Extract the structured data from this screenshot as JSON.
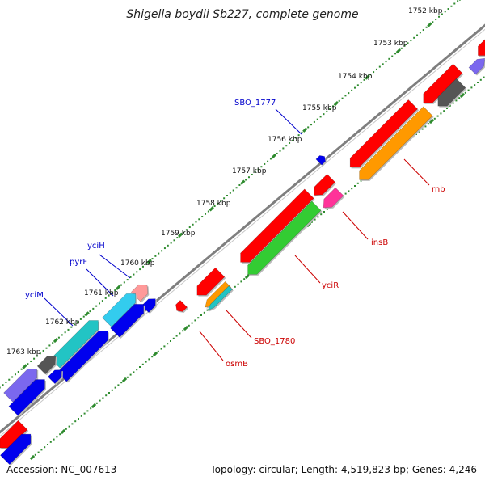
{
  "title": "Shigella boydii Sb227, complete genome",
  "footer": {
    "accession": "Accession: NC_007613",
    "summary": "Topology: circular; Length: 4,519,823 bp; Genes: 4,246"
  },
  "colors": {
    "backbone": "#7f7f7f",
    "tick": "#2e8b2e",
    "label_top": "#0000cc",
    "label_bottom": "#cc0000",
    "red": "#ff0000",
    "blue": "#0000ee",
    "gray": "#555555",
    "orange": "#ff9900",
    "green": "#33cc33",
    "magenta": "#ff3399",
    "cyan": "#22c4c4",
    "sky": "#33ccee",
    "purple": "#7b68ee",
    "pink": "#ff9999"
  },
  "scale_labels": [
    "1752 kbp",
    "1753 kbp",
    "1754 kbp",
    "1755 kbp",
    "1756 kbp",
    "1757 kbp",
    "1758 kbp",
    "1759 kbp",
    "1760 kbp",
    "1761 kbp",
    "1762 kbp",
    "1763 kbp"
  ],
  "gene_labels_top": [
    "SBO_1777",
    "yciH",
    "pyrF",
    "yciM"
  ],
  "gene_labels_bottom": [
    "rnb",
    "insB",
    "yciR",
    "SBO_1780",
    "osmB"
  ]
}
